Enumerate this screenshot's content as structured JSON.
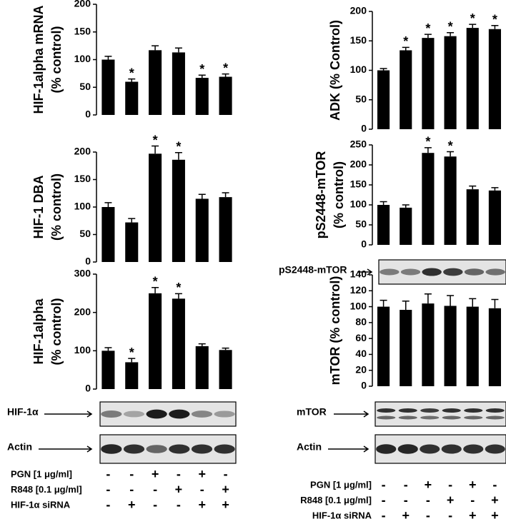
{
  "chart_data": [
    {
      "type": "bar",
      "ylabel_lines": [
        "HIF-1alpha mRNA",
        "(% control)"
      ],
      "categories": [
        null,
        null,
        null,
        null,
        null,
        null
      ],
      "values": [
        100,
        60,
        117,
        113,
        67,
        69
      ],
      "errors": [
        6,
        5,
        8,
        8,
        5,
        5
      ],
      "annotations": [
        null,
        "*",
        null,
        null,
        "*",
        "*"
      ],
      "ylim": [
        0,
        200
      ],
      "yticks": [
        0,
        50,
        100,
        150,
        200
      ],
      "color": "#000000"
    },
    {
      "type": "bar",
      "ylabel_lines": [
        "HIF-1 DBA",
        "(% control)"
      ],
      "categories": [
        null,
        null,
        null,
        null,
        null,
        null
      ],
      "values": [
        100,
        72,
        197,
        186,
        115,
        118
      ],
      "errors": [
        8,
        7,
        14,
        13,
        8,
        8
      ],
      "annotations": [
        null,
        null,
        "*",
        "*",
        null,
        null
      ],
      "ylim": [
        0,
        200
      ],
      "yticks": [
        0,
        50,
        100,
        150,
        200
      ],
      "color": "#000000"
    },
    {
      "type": "bar",
      "ylabel_lines": [
        "HIF-1alpha",
        "(% control)"
      ],
      "categories": [
        null,
        null,
        null,
        null,
        null,
        null
      ],
      "values": [
        100,
        70,
        250,
        236,
        112,
        102
      ],
      "errors": [
        8,
        10,
        15,
        13,
        6,
        5
      ],
      "annotations": [
        null,
        "*",
        "*",
        "*",
        null,
        null
      ],
      "ylim": [
        0,
        300
      ],
      "yticks": [
        0,
        100,
        200,
        300
      ],
      "color": "#000000"
    },
    {
      "type": "bar",
      "ylabel_lines": [
        "ADK (% Control)"
      ],
      "categories": [
        null,
        null,
        null,
        null,
        null,
        null
      ],
      "values": [
        100,
        134,
        155,
        158,
        172,
        170
      ],
      "errors": [
        3,
        5,
        6,
        6,
        6,
        6
      ],
      "annotations": [
        null,
        "*",
        "*",
        "*",
        "*",
        "*"
      ],
      "ylim": [
        0,
        200
      ],
      "yticks": [
        0,
        50,
        100,
        150,
        200
      ],
      "color": "#000000"
    },
    {
      "type": "bar",
      "ylabel_lines": [
        "pS2448-mTOR",
        "(% control)"
      ],
      "categories": [
        null,
        null,
        null,
        null,
        null,
        null
      ],
      "values": [
        100,
        93,
        230,
        221,
        139,
        136
      ],
      "errors": [
        8,
        7,
        13,
        12,
        8,
        7
      ],
      "annotations": [
        null,
        null,
        "*",
        "*",
        null,
        null
      ],
      "ylim": [
        0,
        250
      ],
      "yticks": [
        0,
        50,
        100,
        150,
        200,
        250
      ],
      "color": "#000000"
    },
    {
      "type": "bar",
      "ylabel_lines": [
        "mTOR (% control)"
      ],
      "categories": [
        null,
        null,
        null,
        null,
        null,
        null
      ],
      "values": [
        100,
        96,
        104,
        101,
        100,
        98
      ],
      "errors": [
        8,
        11,
        12,
        13,
        10,
        11
      ],
      "annotations": [
        null,
        null,
        null,
        null,
        null,
        null
      ],
      "ylim": [
        0,
        140
      ],
      "yticks": [
        0,
        20,
        40,
        60,
        80,
        100,
        120,
        140
      ],
      "color": "#000000"
    }
  ],
  "blots": [
    {
      "label": "HIF-1α"
    },
    {
      "label": "Actin"
    },
    {
      "label": "pS2448-mTOR"
    },
    {
      "label": "mTOR"
    },
    {
      "label": "Actin"
    }
  ],
  "conditions_left": [
    {
      "label": "PGN [1 μg/ml]",
      "signs": [
        "-",
        "-",
        "+",
        "-",
        "+",
        "-"
      ]
    },
    {
      "label": "R848 [0.1 μg/ml]",
      "signs": [
        "-",
        "-",
        "-",
        "+",
        "-",
        "+"
      ]
    },
    {
      "label": "HIF-1α siRNA",
      "signs": [
        "-",
        "+",
        "-",
        "-",
        "+",
        "+"
      ]
    }
  ],
  "conditions_right": [
    {
      "label": "PGN [1 μg/ml]",
      "signs": [
        "-",
        "-",
        "+",
        "-",
        "+",
        "-"
      ]
    },
    {
      "label": "R848 [0.1 μg/ml]",
      "signs": [
        "-",
        "-",
        "-",
        "+",
        "-",
        "+"
      ]
    },
    {
      "label": "HIF-1α siRNA",
      "signs": [
        "-",
        "+",
        "-",
        "-",
        "+",
        "+"
      ]
    }
  ]
}
